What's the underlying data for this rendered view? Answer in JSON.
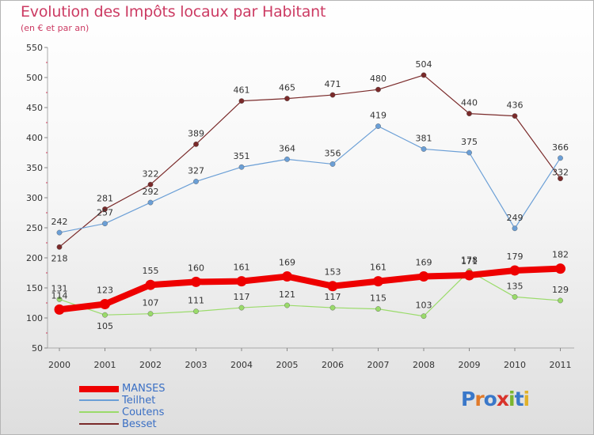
{
  "header": {
    "title": "Evolution des Impôts locaux par Habitant",
    "subtitle": "(en € et par an)"
  },
  "logo": {
    "text": "Proxiti",
    "letter_colors": [
      "#3a78c9",
      "#e07a2a",
      "#3a78c9",
      "#d8332b",
      "#7bb52f",
      "#3a78c9",
      "#e0b12a"
    ]
  },
  "chart_data": {
    "type": "line",
    "title": "Evolution des Impôts locaux par Habitant",
    "subtitle": "(en € et par an)",
    "xlabel": "",
    "ylabel": "",
    "categories": [
      "2000",
      "2001",
      "2002",
      "2003",
      "2004",
      "2005",
      "2006",
      "2007",
      "2008",
      "2009",
      "2010",
      "2011"
    ],
    "ylim": [
      50,
      550
    ],
    "yticks": [
      "550",
      "500",
      "450",
      "400",
      "350",
      "300",
      "250",
      "200",
      "150",
      "100",
      "50"
    ],
    "grid": false,
    "legend_position": "bottom-left",
    "series": [
      {
        "name": "MANSES",
        "color": "#ee0000",
        "values": [
          114,
          123,
          155,
          160,
          161,
          169,
          153,
          161,
          169,
          171,
          179,
          182
        ],
        "labels": [
          "114",
          "123",
          "155",
          "160",
          "161",
          "169",
          "153",
          "161",
          "169",
          "171",
          "179",
          "182"
        ]
      },
      {
        "name": "Teilhet",
        "color": "#6b9fd6",
        "values": [
          242,
          257,
          292,
          327,
          351,
          364,
          356,
          419,
          381,
          375,
          249,
          366
        ],
        "labels": [
          "242",
          "257",
          "292",
          "327",
          "351",
          "364",
          "356",
          "419",
          "381",
          "375",
          "249",
          "366"
        ]
      },
      {
        "name": "Coutens",
        "color": "#9adb6a",
        "values": [
          131,
          105,
          107,
          111,
          117,
          121,
          117,
          115,
          103,
          178,
          135,
          129
        ],
        "labels": [
          "131",
          "105",
          "107",
          "111",
          "117",
          "121",
          "117",
          "115",
          "103",
          "178",
          "135",
          "129"
        ]
      },
      {
        "name": "Besset",
        "color": "#7a2a2a",
        "values": [
          218,
          281,
          322,
          389,
          461,
          465,
          471,
          480,
          504,
          440,
          436,
          332
        ],
        "labels": [
          "218",
          "281",
          "322",
          "389",
          "461",
          "465",
          "471",
          "480",
          "504",
          "440",
          "436",
          "332"
        ]
      }
    ]
  }
}
